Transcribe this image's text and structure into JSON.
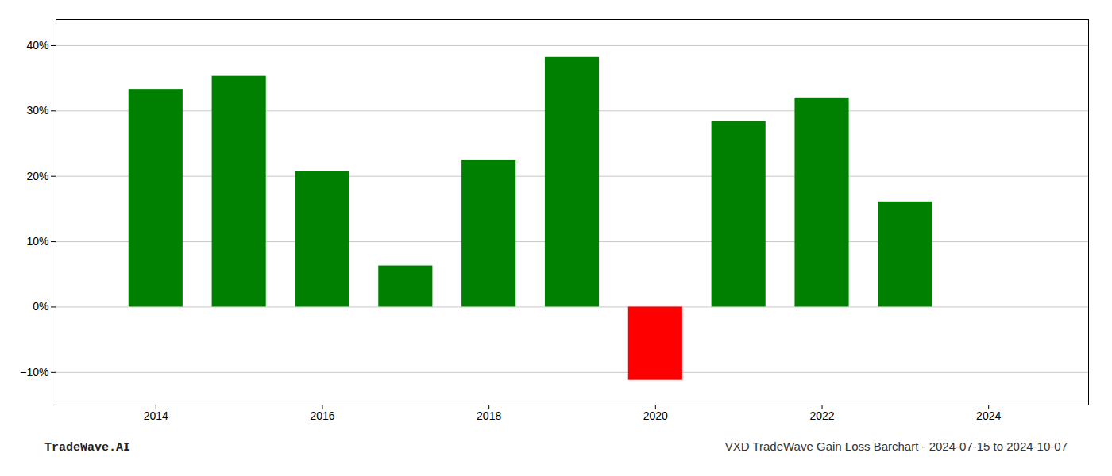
{
  "chart_data": {
    "type": "bar",
    "x": [
      2014,
      2015,
      2016,
      2017,
      2018,
      2019,
      2020,
      2021,
      2022,
      2023
    ],
    "values": [
      0.333,
      0.353,
      0.207,
      0.063,
      0.224,
      0.382,
      -0.112,
      0.284,
      0.32,
      0.161
    ],
    "colors": [
      "#008000",
      "#008000",
      "#008000",
      "#008000",
      "#008000",
      "#008000",
      "#ff0000",
      "#008000",
      "#008000",
      "#008000"
    ],
    "xlim": [
      2012.8,
      2025.2
    ],
    "xticks": [
      2014,
      2016,
      2018,
      2020,
      2022,
      2024
    ],
    "ylim": [
      -0.15,
      0.44
    ],
    "yticks": [
      {
        "value": -0.1,
        "label": "−10%"
      },
      {
        "value": 0.0,
        "label": "0%"
      },
      {
        "value": 0.1,
        "label": "10%"
      },
      {
        "value": 0.2,
        "label": "20%"
      },
      {
        "value": 0.3,
        "label": "30%"
      },
      {
        "value": 0.4,
        "label": "40%"
      }
    ],
    "grid": true,
    "annotations": [
      "TradeWave.AI",
      "VXD TradeWave Gain Loss Barchart - 2024-07-15 to 2024-10-07"
    ]
  }
}
